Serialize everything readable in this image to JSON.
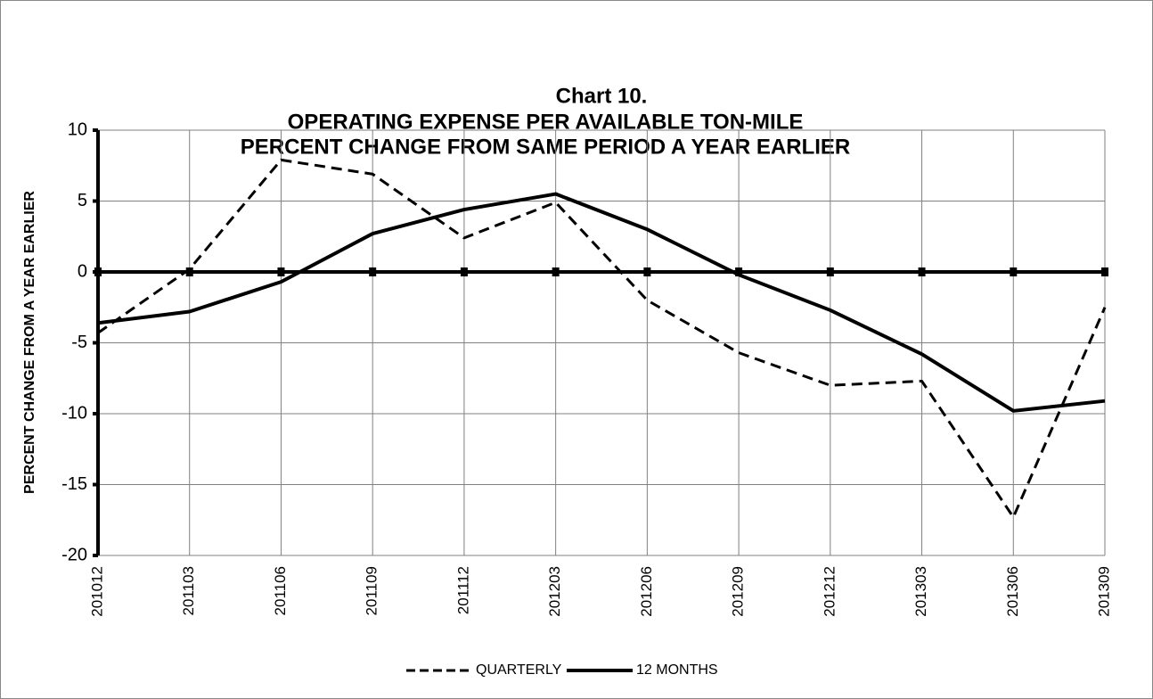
{
  "chart_data": {
    "type": "line",
    "title": [
      "Chart 10.",
      "OPERATING EXPENSE PER AVAILABLE TON-MILE",
      "PERCENT CHANGE FROM SAME PERIOD A YEAR EARLIER"
    ],
    "y_label": "PERCENT CHANGE FROM A YEAR EARLIER",
    "categories": [
      "201012",
      "201103",
      "201106",
      "201109",
      "201112",
      "201203",
      "201206",
      "201209",
      "201212",
      "201303",
      "201306",
      "201309"
    ],
    "series": [
      {
        "name": "QUARTERLY",
        "color": "#000000",
        "style": "dashed",
        "values": [
          -4.3,
          0.2,
          7.9,
          6.9,
          2.4,
          4.9,
          -2.0,
          -5.7,
          -8.0,
          -7.7,
          -17.3,
          -2.5
        ]
      },
      {
        "name": "12 MONTHS",
        "color": "#000000",
        "style": "solid",
        "values": [
          -3.6,
          -2.8,
          -0.7,
          2.7,
          4.4,
          5.5,
          3.0,
          -0.2,
          -2.7,
          -5.8,
          -9.8,
          -9.1
        ]
      }
    ],
    "ylim": [
      -20,
      10
    ],
    "yticks": [
      -20,
      -15,
      -10,
      -5,
      0,
      5,
      10
    ],
    "grid": true,
    "legend": "bottom"
  }
}
